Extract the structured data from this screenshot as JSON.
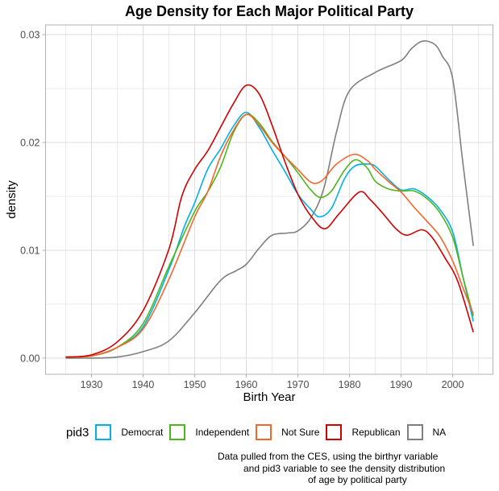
{
  "chart_data": {
    "type": "line",
    "title": "Age Density for Each Major Political Party",
    "xlabel": "Birth Year",
    "ylabel": "density",
    "xlim": [
      1921.1,
      2007.8
    ],
    "ylim": [
      -0.0015,
      0.0309
    ],
    "x_ticks": [
      1930,
      1940,
      1950,
      1960,
      1970,
      1980,
      1990,
      2000
    ],
    "x_tick_labels": [
      "1930",
      "1940",
      "1950",
      "1960",
      "1970",
      "1980",
      "1990",
      "2000"
    ],
    "y_ticks": [
      0.0,
      0.01,
      0.02,
      0.03
    ],
    "y_tick_labels": [
      "0.00",
      "0.01",
      "0.02",
      "0.03"
    ],
    "grid": true,
    "legend": {
      "title": "pid3",
      "position": "bottom",
      "entries": [
        "Democrat",
        "Independent",
        "Not Sure",
        "Republican",
        "NA"
      ]
    },
    "caption": [
      "Data pulled from the CES, using the birthyr variable",
      "and pid3 variable to see the density distribution",
      "of age by political party"
    ],
    "series": [
      {
        "name": "Democrat",
        "color": "#00b0e8",
        "x": [
          1925,
          1930,
          1935,
          1940,
          1945,
          1948,
          1950,
          1952.5,
          1955,
          1957.5,
          1960,
          1962.5,
          1965,
          1967.5,
          1970,
          1972.5,
          1974.2,
          1976.5,
          1979,
          1981,
          1983.5,
          1985,
          1987.5,
          1990,
          1992.5,
          1995,
          1997.5,
          2000,
          2002,
          2004
        ],
        "y": [
          0.0001,
          0.0002,
          0.001,
          0.0029,
          0.0082,
          0.0122,
          0.0144,
          0.0175,
          0.0194,
          0.0215,
          0.0228,
          0.0214,
          0.0193,
          0.0173,
          0.0152,
          0.0138,
          0.0131,
          0.0139,
          0.0166,
          0.0178,
          0.018,
          0.0178,
          0.0166,
          0.0156,
          0.0157,
          0.015,
          0.0138,
          0.0117,
          0.0075,
          0.0034
        ]
      },
      {
        "name": "Independent",
        "color": "#4cb71a",
        "x": [
          1925,
          1930,
          1935,
          1940,
          1945,
          1950,
          1952.5,
          1955,
          1957.5,
          1960,
          1962.5,
          1965,
          1967.5,
          1970,
          1972.5,
          1974.4,
          1976.5,
          1979,
          1981.2,
          1983.5,
          1985,
          1987.5,
          1990,
          1992.5,
          1995,
          1997.5,
          2000,
          2002,
          2004
        ],
        "y": [
          0.0001,
          0.0002,
          0.001,
          0.0032,
          0.0085,
          0.0136,
          0.0154,
          0.0177,
          0.0209,
          0.0226,
          0.0218,
          0.0201,
          0.0187,
          0.0172,
          0.0156,
          0.0149,
          0.0155,
          0.0174,
          0.0184,
          0.0176,
          0.0164,
          0.0157,
          0.0155,
          0.0155,
          0.0148,
          0.0135,
          0.0112,
          0.0075,
          0.0039
        ]
      },
      {
        "name": "Not Sure",
        "color": "#f5662a",
        "x": [
          1925,
          1930,
          1935,
          1940,
          1945,
          1950,
          1952.5,
          1955,
          1957.5,
          1960,
          1962.5,
          1965,
          1967.5,
          1970,
          1972,
          1973.4,
          1975,
          1977.5,
          1980.9,
          1983.5,
          1985,
          1987.5,
          1990,
          1992.5,
          1995,
          1997.5,
          2000,
          2002,
          2004
        ],
        "y": [
          0.0001,
          0.0002,
          0.001,
          0.0027,
          0.0073,
          0.0131,
          0.0154,
          0.0187,
          0.0211,
          0.0226,
          0.0216,
          0.02,
          0.0187,
          0.0175,
          0.0165,
          0.0162,
          0.0166,
          0.018,
          0.0189,
          0.0183,
          0.0175,
          0.0164,
          0.0154,
          0.014,
          0.0127,
          0.0113,
          0.009,
          0.0065,
          0.0041
        ]
      },
      {
        "name": "Republican",
        "color": "#d10000",
        "x": [
          1925,
          1930,
          1935,
          1940,
          1945,
          1947.5,
          1950,
          1952.5,
          1955,
          1957.5,
          1960,
          1962.5,
          1965,
          1967.5,
          1970,
          1972.5,
          1975.2,
          1978,
          1981.9,
          1984,
          1986.5,
          1989,
          1991.1,
          1994,
          1996,
          1998.5,
          2001,
          2004
        ],
        "y": [
          0.0001,
          0.0003,
          0.0015,
          0.0044,
          0.0101,
          0.015,
          0.0175,
          0.0192,
          0.0214,
          0.0236,
          0.0253,
          0.0245,
          0.0216,
          0.0182,
          0.0152,
          0.0132,
          0.012,
          0.0134,
          0.0154,
          0.0147,
          0.0134,
          0.012,
          0.0114,
          0.0119,
          0.0112,
          0.0093,
          0.0071,
          0.0024
        ]
      },
      {
        "name": "NA",
        "color": "#7f7f7f",
        "x": [
          1925,
          1930,
          1935,
          1940,
          1945,
          1950,
          1955,
          1958,
          1960,
          1962.5,
          1965,
          1968,
          1970,
          1972.5,
          1975,
          1977.5,
          1980,
          1985,
          1990,
          1992,
          1994.2,
          1996.5,
          1998,
          2000,
          2002,
          2004
        ],
        "y": [
          0.0,
          0.0,
          0.0001,
          0.0006,
          0.0016,
          0.0042,
          0.0072,
          0.0081,
          0.0087,
          0.0102,
          0.0114,
          0.0116,
          0.0118,
          0.013,
          0.0157,
          0.021,
          0.0248,
          0.0265,
          0.0276,
          0.0287,
          0.0294,
          0.0291,
          0.028,
          0.0259,
          0.018,
          0.0104
        ]
      }
    ]
  }
}
